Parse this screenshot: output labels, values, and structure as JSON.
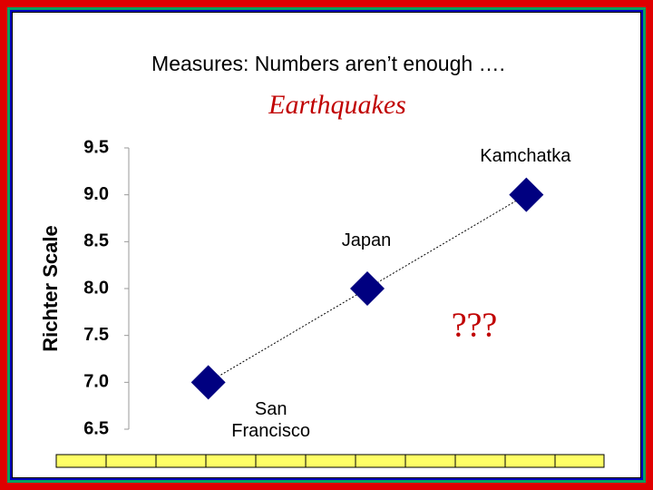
{
  "slide_title": "Measures: Numbers aren’t enough ….",
  "chart_data": {
    "type": "line",
    "title": "Earthquakes",
    "y_label": "Richter Scale",
    "categories": [
      "San Francisco",
      "Japan",
      "Kamchatka"
    ],
    "series": [
      {
        "color": "#000080",
        "values": [
          7,
          8,
          9
        ]
      }
    ],
    "ylim": [
      6.5,
      9.5
    ],
    "yticks": [
      6.5,
      {
        "value": 7,
        "label": "7.0"
      },
      7.5,
      {
        "value": 8,
        "label": "8.0"
      },
      8.5,
      {
        "value": 9,
        "label": "9.0"
      },
      9.5
    ],
    "annotation": "???"
  }
}
